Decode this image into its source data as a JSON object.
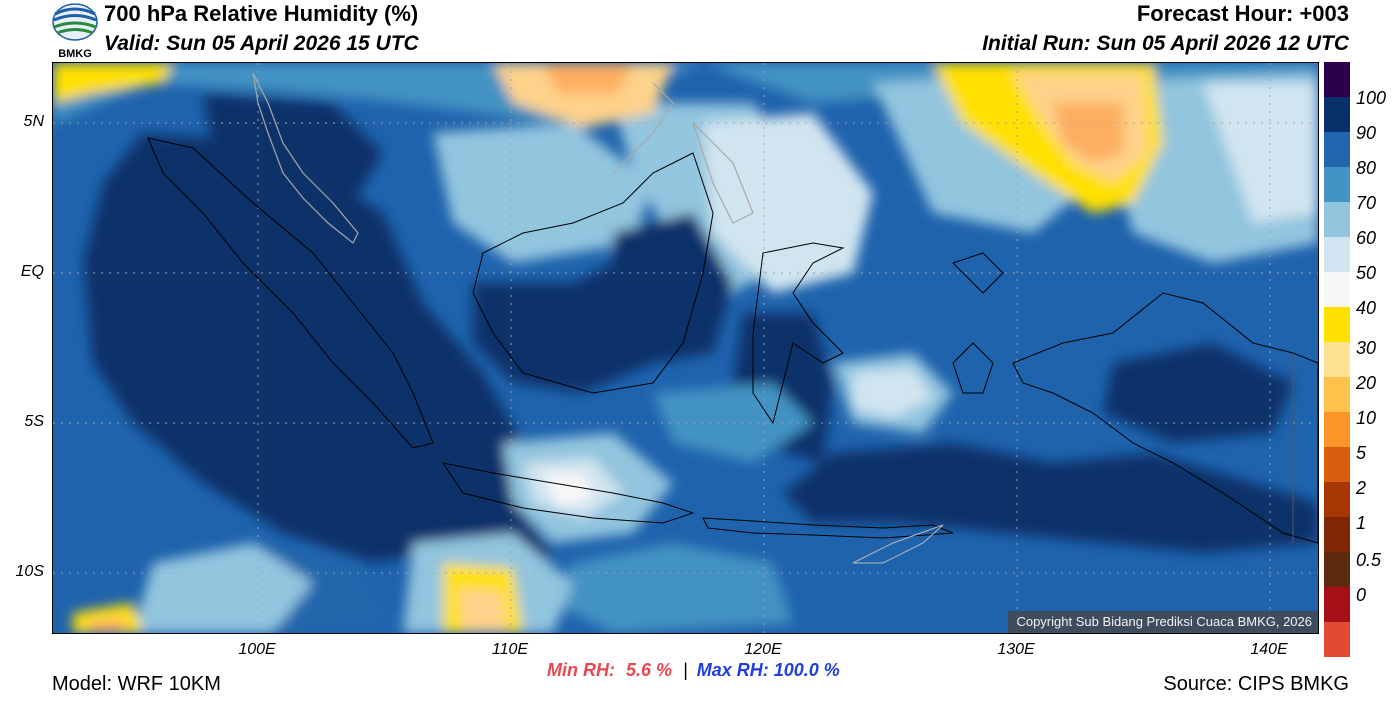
{
  "header": {
    "logo_text": "BMKG",
    "title": "700 hPa Relative Humidity (%)",
    "valid": "Valid: Sun 05 April 2026 15 UTC",
    "forecast_hour": "Forecast Hour: +003",
    "initial_run": "Initial Run: Sun 05 April 2026 12 UTC"
  },
  "map": {
    "lat_labels": [
      "5N",
      "EQ",
      "5S",
      "10S"
    ],
    "lon_labels": [
      "100E",
      "110E",
      "120E",
      "130E",
      "140E"
    ],
    "copyright": "Copyright Sub Bidang Prediksi Cuaca BMKG, 2026",
    "palette": {
      "very_dark_blue": "#08306b",
      "dark_blue": "#2166ac",
      "mid_blue": "#4393c3",
      "light_blue": "#92c5de",
      "pale_blue": "#d1e5f0",
      "near_white": "#f7f7f7",
      "yellow": "#ffe000",
      "light_orange": "#fdd28a",
      "orange": "#fdae61"
    }
  },
  "colorbar": {
    "labels": [
      "100",
      "90",
      "80",
      "70",
      "60",
      "50",
      "40",
      "30",
      "20",
      "10",
      "5",
      "2",
      "1",
      "0.5",
      "0"
    ],
    "colors": [
      "#2d004b",
      "#08306b",
      "#2166ac",
      "#4393c3",
      "#92c5de",
      "#d1e5f0",
      "#f7f7f7",
      "#ffe000",
      "#fee391",
      "#fdc34d",
      "#fd9628",
      "#d95f0e",
      "#a63603",
      "#7f2704",
      "#5e2a0e",
      "#a50f15",
      "#e34a33"
    ]
  },
  "footer": {
    "model": "Model: WRF 10KM",
    "min_label": "Min RH:",
    "min_value": "5.6 %",
    "separator": "|",
    "max_label": "Max RH: 100.0 %",
    "source": "Source: CIPS BMKG"
  }
}
